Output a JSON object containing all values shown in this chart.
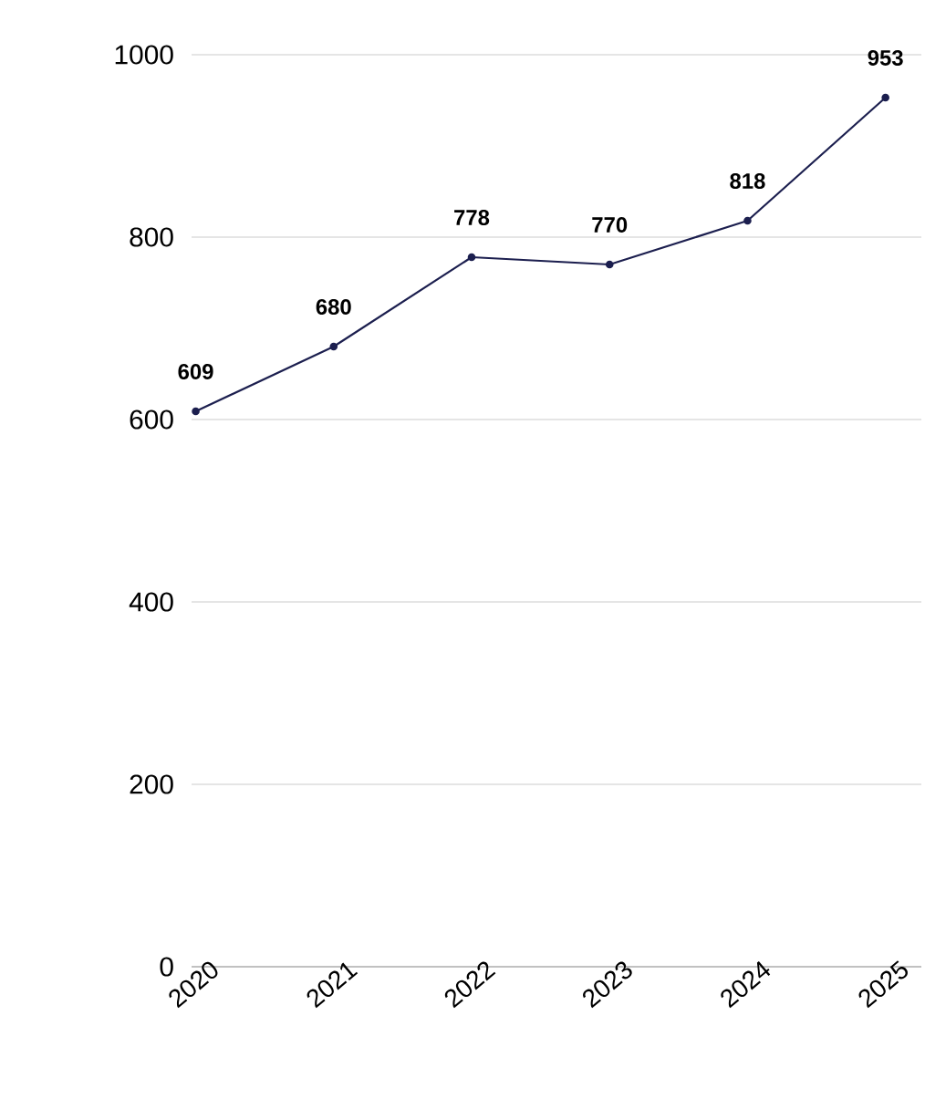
{
  "chart_data": {
    "type": "line",
    "categories": [
      "2020",
      "2021",
      "2022",
      "2023",
      "2024",
      "2025"
    ],
    "values": [
      609,
      680,
      778,
      770,
      818,
      953
    ],
    "color": "#1c1f4f",
    "ylim": [
      0,
      1000
    ],
    "yticks": [
      0,
      200,
      400,
      600,
      800,
      1000
    ],
    "grid": "y",
    "marker": "circle",
    "data_labels": true
  }
}
